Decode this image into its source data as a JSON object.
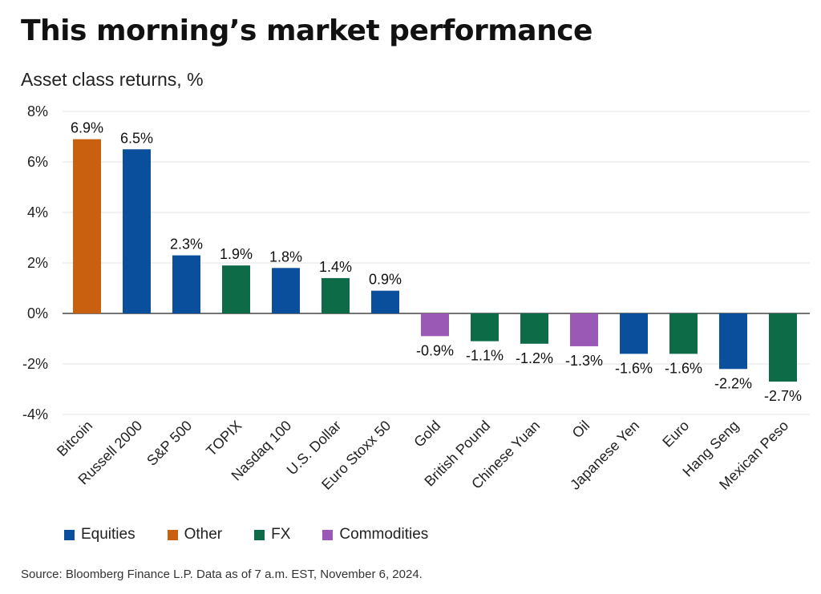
{
  "title": "This morning’s market performance",
  "subtitle": "Asset class returns, %",
  "source": "Source: Bloomberg Finance L.P. Data as of 7 a.m. EST, November 6, 2024.",
  "colors": {
    "Equities": "#0a4f9c",
    "Other": "#c8600f",
    "FX": "#0e6b47",
    "Commodities": "#9b59b6"
  },
  "legend": [
    {
      "label": "Equities",
      "group": "Equities"
    },
    {
      "label": "Other",
      "group": "Other"
    },
    {
      "label": "FX",
      "group": "FX"
    },
    {
      "label": "Commodities",
      "group": "Commodities"
    }
  ],
  "chart_data": {
    "type": "bar",
    "title": "This morning’s market performance",
    "subtitle": "Asset class returns, %",
    "categories": [
      "Bitcoin",
      "Russell 2000",
      "S&P 500",
      "TOPIX",
      "Nasdaq 100",
      "U.S. Dollar",
      "Euro Stoxx 50",
      "Gold",
      "British Pound",
      "Chinese Yuan",
      "Oil",
      "Japanese Yen",
      "Euro",
      "Hang Seng",
      "Mexican Peso"
    ],
    "values": [
      6.9,
      6.5,
      2.3,
      1.9,
      1.8,
      1.4,
      0.9,
      -0.9,
      -1.1,
      -1.2,
      -1.3,
      -1.6,
      -1.6,
      -2.2,
      -2.7
    ],
    "data_labels": [
      "6.9%",
      "6.5%",
      "2.3%",
      "1.9%",
      "1.8%",
      "1.4%",
      "0.9%",
      "-0.9%",
      "-1.1%",
      "-1.2%",
      "-1.3%",
      "-1.6%",
      "-1.6%",
      "-2.2%",
      "-2.7%"
    ],
    "groups": [
      "Other",
      "Equities",
      "Equities",
      "FX",
      "Equities",
      "FX",
      "Equities",
      "Commodities",
      "FX",
      "FX",
      "Commodities",
      "Equities",
      "FX",
      "Equities",
      "FX"
    ],
    "ylim": [
      -4,
      8
    ],
    "yticks": [
      8,
      6,
      4,
      2,
      0,
      -2,
      -4
    ],
    "ytick_labels": [
      "8%",
      "6%",
      "4%",
      "2%",
      "0%",
      "-2%",
      "-4%"
    ],
    "grid": true,
    "legend_position": "bottom-left"
  }
}
